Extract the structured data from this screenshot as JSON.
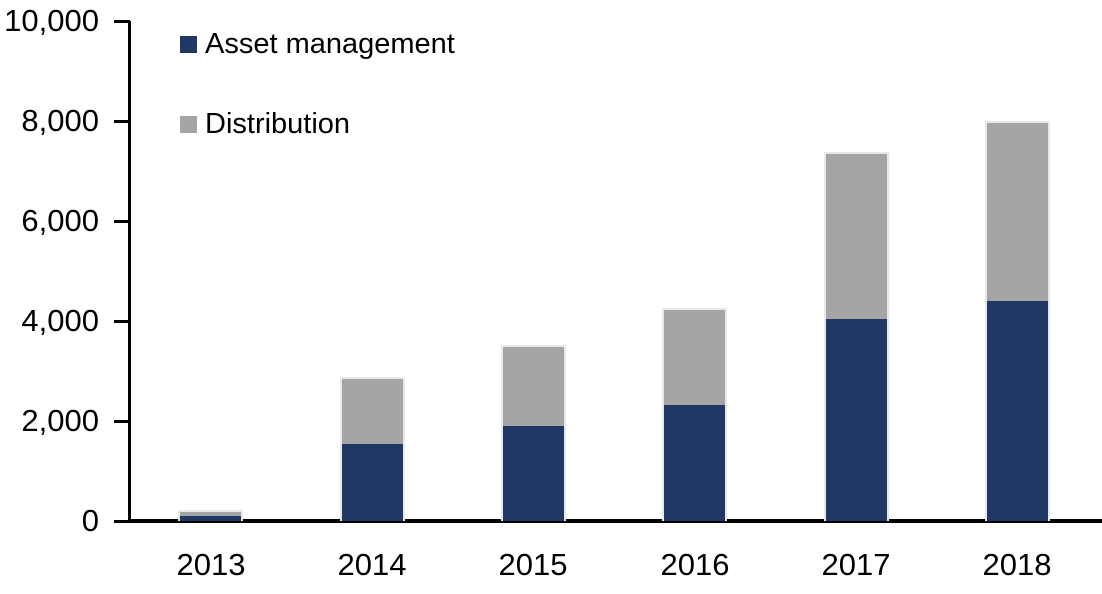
{
  "chart_data": {
    "type": "bar",
    "stacked": true,
    "title": "",
    "categories": [
      "2013",
      "2014",
      "2015",
      "2016",
      "2017",
      "2018"
    ],
    "series": [
      {
        "name": "Asset management",
        "color": "#1F3864",
        "values": [
          120,
          1560,
          1920,
          2340,
          4060,
          4420
        ]
      },
      {
        "name": "Distribution",
        "color": "#A5A5A5",
        "values": [
          100,
          1320,
          1600,
          1920,
          3320,
          3580
        ]
      }
    ],
    "ylim": [
      0,
      10000
    ],
    "yticks": [
      0,
      2000,
      4000,
      6000,
      8000,
      10000
    ],
    "ytick_labels": [
      "0",
      "2,000",
      "4,000",
      "6,000",
      "8,000",
      "10,000"
    ],
    "xlabel": "",
    "ylabel": "",
    "grid": false,
    "legend_position": "top-left",
    "axis_color": "#000000",
    "background_color": "#FFFFFF"
  }
}
